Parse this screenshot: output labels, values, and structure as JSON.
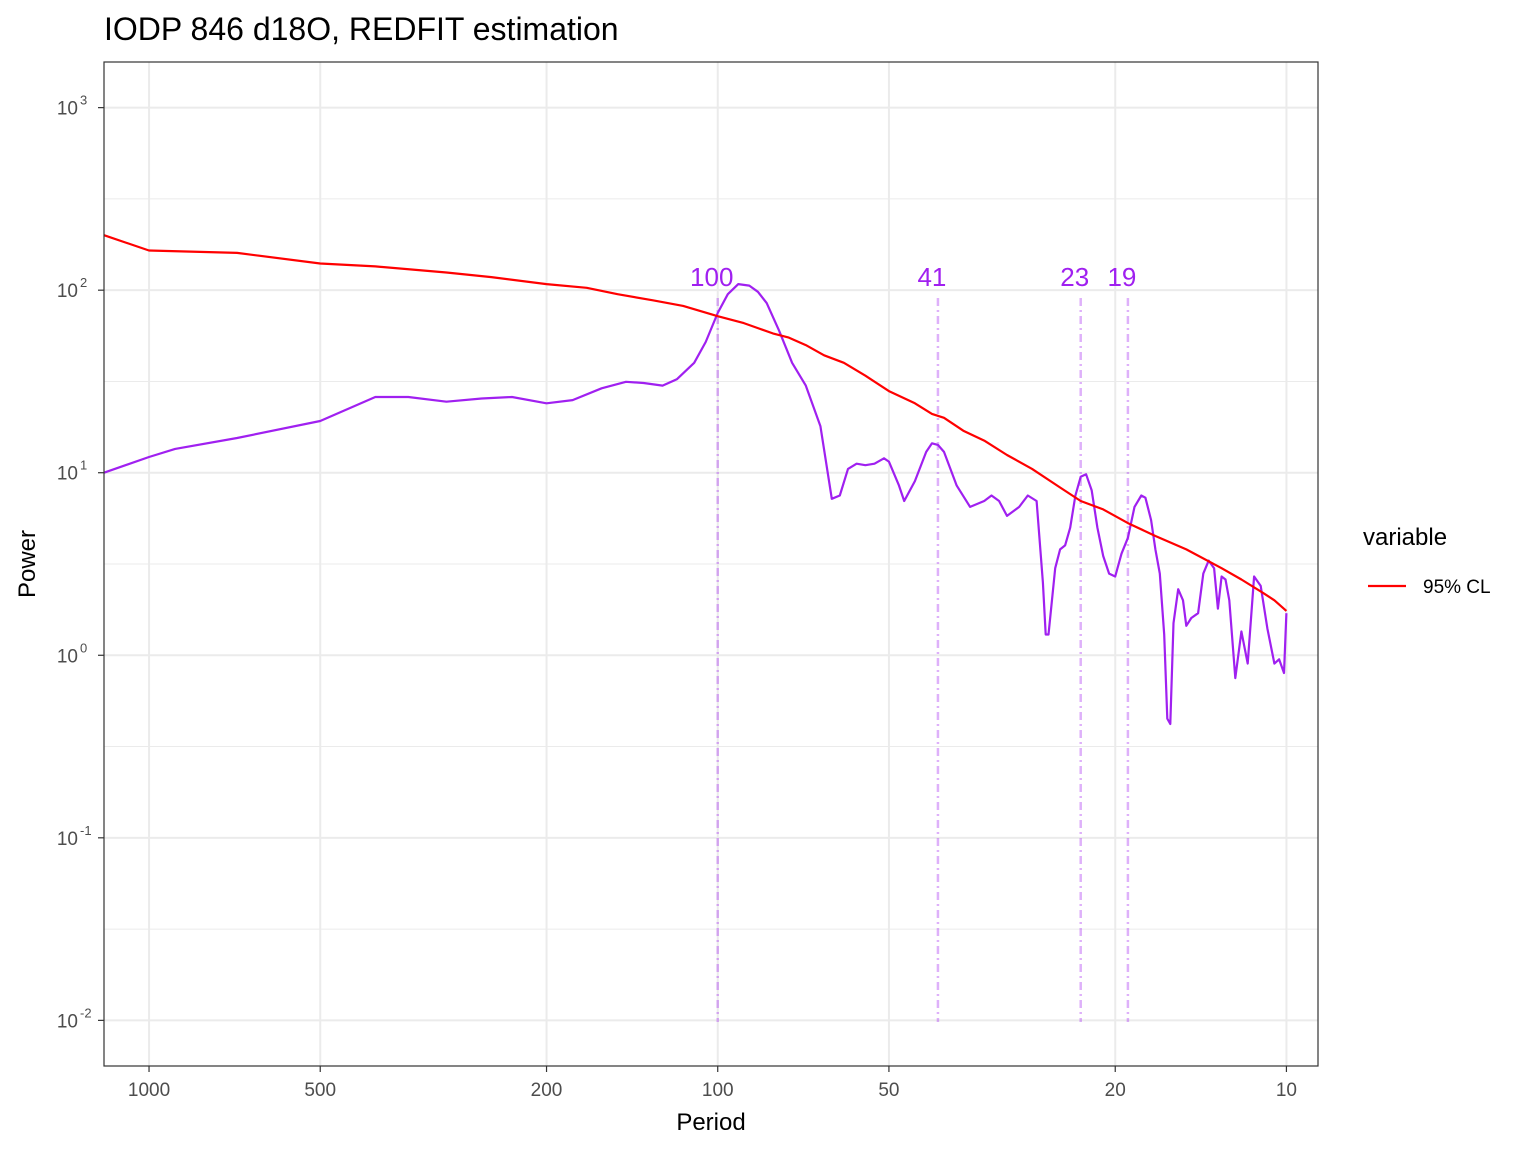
{
  "chart_data": {
    "type": "line",
    "title": "IODP 846 d18O, REDFIT estimation",
    "xlabel": "Period",
    "ylabel": "Power",
    "x_scale": "log10-reversed",
    "y_scale": "log10",
    "xlim": [
      1200,
      8.8
    ],
    "ylim_exponents": [
      -2.25,
      3.25
    ],
    "x_ticks": [
      1000,
      500,
      200,
      100,
      50,
      20,
      10
    ],
    "x_tick_labels": [
      "1000",
      "500",
      "200",
      "100",
      "50",
      "20",
      "10"
    ],
    "y_ticks": [
      {
        "base": "10",
        "exp": "3",
        "value": 3
      },
      {
        "base": "10",
        "exp": "2",
        "value": 2
      },
      {
        "base": "10",
        "exp": "1",
        "value": 1
      },
      {
        "base": "10",
        "exp": "0",
        "value": 0
      },
      {
        "base": "10",
        "exp": "-1",
        "value": -1
      },
      {
        "base": "10",
        "exp": "-2",
        "value": -2
      }
    ],
    "grid": true,
    "legend": {
      "title": "variable",
      "position": "right",
      "entries": [
        {
          "label": "95% CL",
          "color": "#ff0000"
        }
      ]
    },
    "series": [
      {
        "color": "#a020f0",
        "points": [
          [
            1200,
            10.0
          ],
          [
            1000,
            12.2
          ],
          [
            900,
            13.5
          ],
          [
            700,
            15.5
          ],
          [
            500,
            19.2
          ],
          [
            400,
            26.0
          ],
          [
            350,
            26.0
          ],
          [
            300,
            24.5
          ],
          [
            260,
            25.5
          ],
          [
            230,
            26.0
          ],
          [
            200,
            24.0
          ],
          [
            180,
            25.0
          ],
          [
            160,
            29.0
          ],
          [
            145,
            31.5
          ],
          [
            135,
            31.0
          ],
          [
            125,
            30.0
          ],
          [
            118,
            32.5
          ],
          [
            110,
            40.0
          ],
          [
            105,
            52.0
          ],
          [
            100,
            75.0
          ],
          [
            96,
            95.0
          ],
          [
            92,
            108.0
          ],
          [
            88,
            106.0
          ],
          [
            85,
            98.0
          ],
          [
            82,
            85.0
          ],
          [
            78,
            60.0
          ],
          [
            74,
            40.0
          ],
          [
            70,
            30.0
          ],
          [
            66,
            18.0
          ],
          [
            63,
            7.2
          ],
          [
            61,
            7.5
          ],
          [
            59,
            10.5
          ],
          [
            57,
            11.2
          ],
          [
            55,
            11.0
          ],
          [
            53,
            11.2
          ],
          [
            51,
            12.0
          ],
          [
            50,
            11.5
          ],
          [
            48,
            8.5
          ],
          [
            47,
            7.0
          ],
          [
            45,
            9.0
          ],
          [
            43,
            13.0
          ],
          [
            42,
            14.5
          ],
          [
            41,
            14.2
          ],
          [
            40,
            13.0
          ],
          [
            38,
            8.5
          ],
          [
            36,
            6.5
          ],
          [
            34,
            7.0
          ],
          [
            33,
            7.5
          ],
          [
            32,
            7.0
          ],
          [
            31,
            5.8
          ],
          [
            29.5,
            6.5
          ],
          [
            28.5,
            7.5
          ],
          [
            27.5,
            7.0
          ],
          [
            26.8,
            2.5
          ],
          [
            26.5,
            1.3
          ],
          [
            26.2,
            1.3
          ],
          [
            25.5,
            3.0
          ],
          [
            25.0,
            3.8
          ],
          [
            24.5,
            4.0
          ],
          [
            24.0,
            5.0
          ],
          [
            23.5,
            7.5
          ],
          [
            23.0,
            9.5
          ],
          [
            22.5,
            9.8
          ],
          [
            22.0,
            8.0
          ],
          [
            21.5,
            5.0
          ],
          [
            21.0,
            3.5
          ],
          [
            20.5,
            2.8
          ],
          [
            20.0,
            2.7
          ],
          [
            19.5,
            3.6
          ],
          [
            19.0,
            4.4
          ],
          [
            18.5,
            6.5
          ],
          [
            18.0,
            7.5
          ],
          [
            17.7,
            7.3
          ],
          [
            17.3,
            5.5
          ],
          [
            17.0,
            3.8
          ],
          [
            16.7,
            2.8
          ],
          [
            16.4,
            1.3
          ],
          [
            16.2,
            0.45
          ],
          [
            16.0,
            0.42
          ],
          [
            15.8,
            1.5
          ],
          [
            15.5,
            2.3
          ],
          [
            15.2,
            2.0
          ],
          [
            15.0,
            1.45
          ],
          [
            14.7,
            1.6
          ],
          [
            14.3,
            1.7
          ],
          [
            14.0,
            2.8
          ],
          [
            13.7,
            3.3
          ],
          [
            13.4,
            3.0
          ],
          [
            13.2,
            1.8
          ],
          [
            13.0,
            2.7
          ],
          [
            12.8,
            2.6
          ],
          [
            12.6,
            2.0
          ],
          [
            12.3,
            0.75
          ],
          [
            12.0,
            1.35
          ],
          [
            11.7,
            0.9
          ],
          [
            11.4,
            2.7
          ],
          [
            11.1,
            2.4
          ],
          [
            10.8,
            1.4
          ],
          [
            10.5,
            0.9
          ],
          [
            10.3,
            0.95
          ],
          [
            10.1,
            0.8
          ],
          [
            10.0,
            1.7
          ]
        ]
      },
      {
        "name": "95% CL",
        "color": "#ff0000",
        "points": [
          [
            1200,
            200
          ],
          [
            1000,
            165
          ],
          [
            700,
            160
          ],
          [
            500,
            140
          ],
          [
            400,
            135
          ],
          [
            300,
            125
          ],
          [
            250,
            118
          ],
          [
            200,
            108
          ],
          [
            170,
            103
          ],
          [
            150,
            95
          ],
          [
            130,
            88
          ],
          [
            115,
            82
          ],
          [
            100,
            72
          ],
          [
            90,
            66
          ],
          [
            85,
            62
          ],
          [
            80,
            58
          ],
          [
            75,
            55
          ],
          [
            70,
            50
          ],
          [
            65,
            44
          ],
          [
            60,
            40
          ],
          [
            55,
            34
          ],
          [
            50,
            28
          ],
          [
            45,
            24
          ],
          [
            42,
            21
          ],
          [
            40,
            20
          ],
          [
            37,
            17
          ],
          [
            34,
            15
          ],
          [
            31,
            12.5
          ],
          [
            28,
            10.5
          ],
          [
            25,
            8.3
          ],
          [
            23,
            7.0
          ],
          [
            21,
            6.3
          ],
          [
            19,
            5.3
          ],
          [
            17,
            4.5
          ],
          [
            15,
            3.8
          ],
          [
            13,
            3.0
          ],
          [
            12,
            2.6
          ],
          [
            11,
            2.2
          ],
          [
            10.5,
            2.0
          ],
          [
            10,
            1.75
          ]
        ]
      }
    ],
    "vlines": [
      {
        "x": 100,
        "label": "100",
        "color": "#a020f0"
      },
      {
        "x": 41,
        "label": "41",
        "color": "#a020f0"
      },
      {
        "x": 23,
        "label": "23",
        "color": "#a020f0"
      },
      {
        "x": 19,
        "label": "19",
        "color": "#a020f0"
      }
    ]
  }
}
